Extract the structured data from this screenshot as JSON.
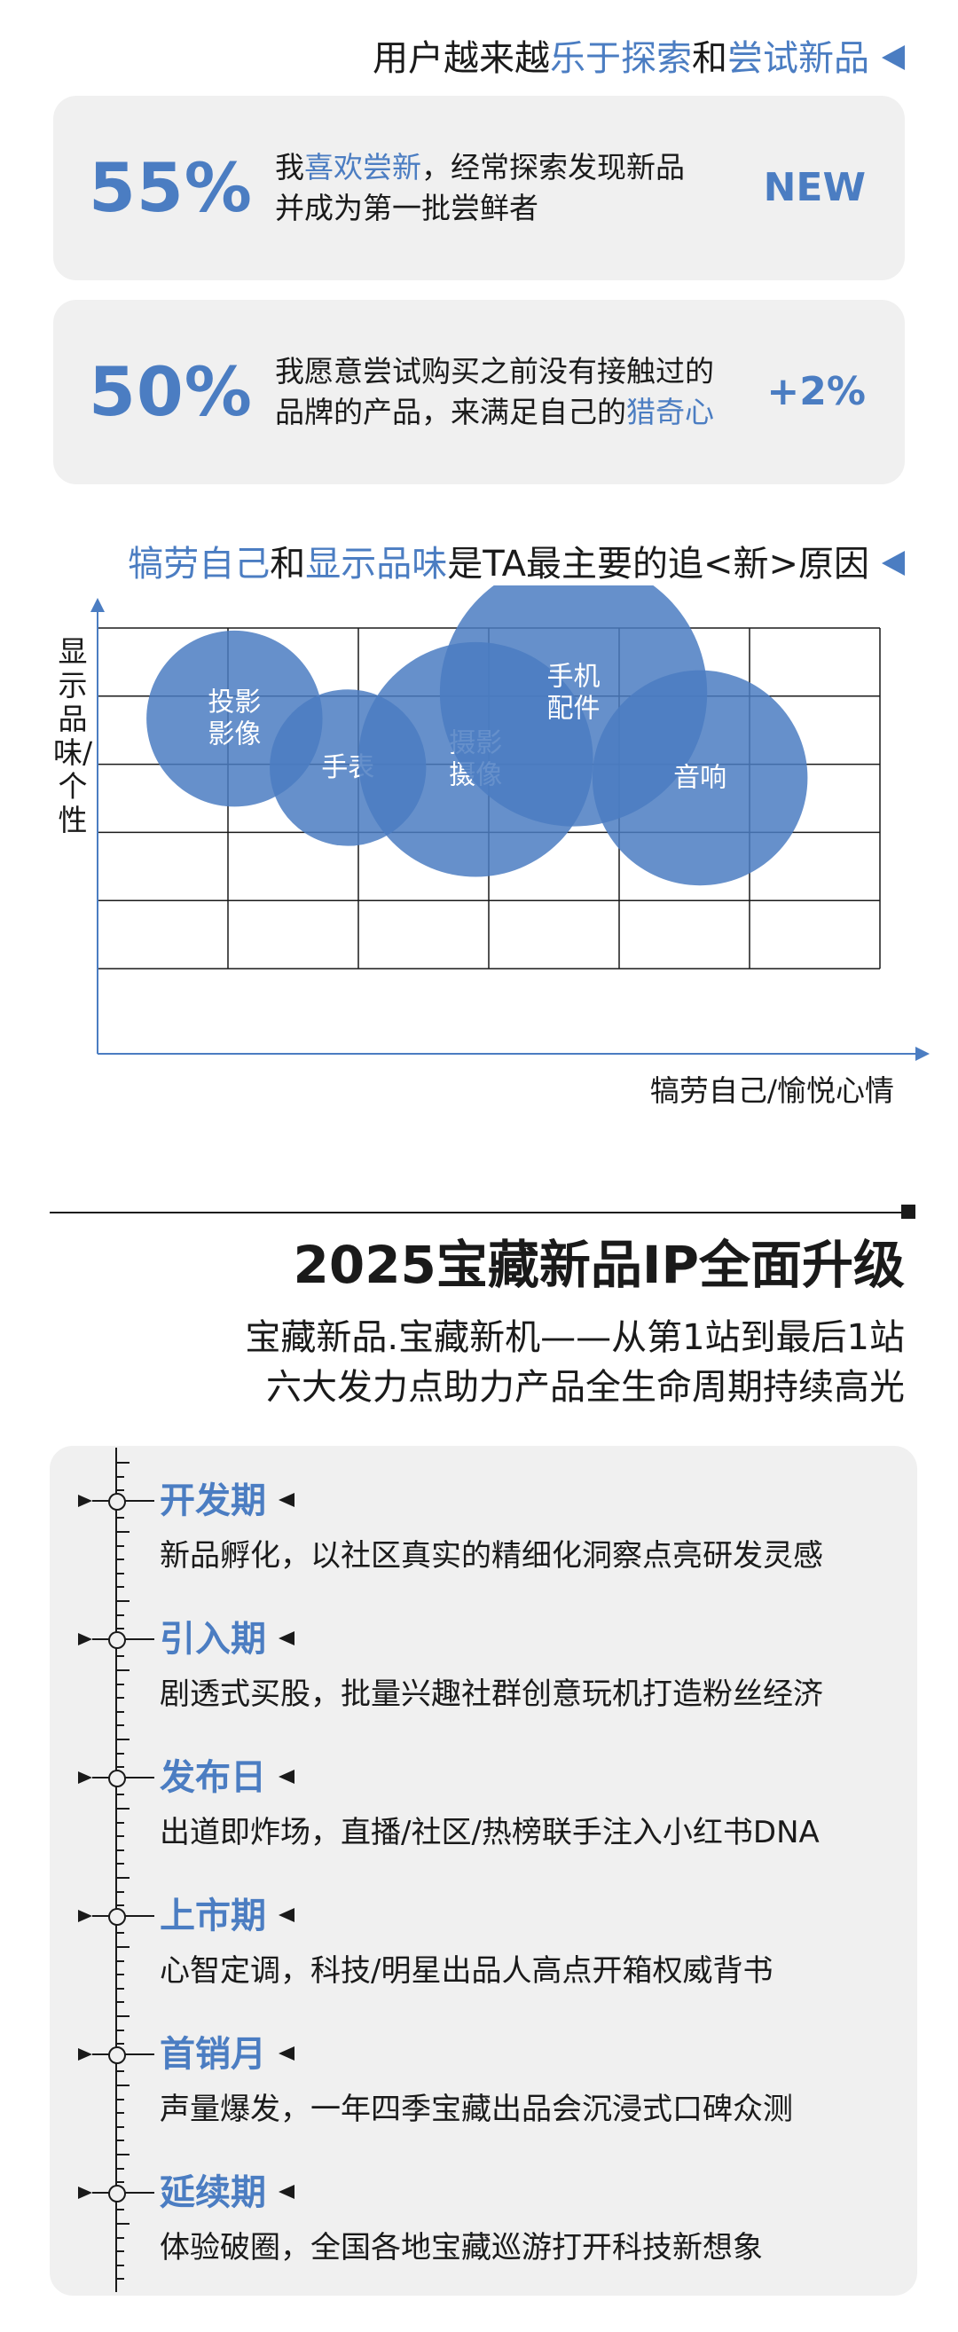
{
  "section1": {
    "title_parts": [
      "用户越来越",
      "乐于探索",
      "和",
      "尝试新品"
    ],
    "cards": [
      {
        "percent": "55%",
        "line1_parts": [
          "我",
          "喜欢尝新",
          "，经常探索发现新品"
        ],
        "line2_parts": [
          "并成为第一批尝鲜者",
          "",
          ""
        ],
        "badge": "NEW"
      },
      {
        "percent": "50%",
        "line1_parts": [
          "我愿意尝试购买之前没有接触过的",
          "",
          ""
        ],
        "line2_parts": [
          "品牌的产品，来满足自己的",
          "猎奇心",
          ""
        ],
        "badge": "+2%"
      }
    ]
  },
  "section2": {
    "title_parts": [
      "犒劳自己",
      "和",
      "显示品味",
      "是TA最主要的追<新>原因"
    ]
  },
  "chart_data": {
    "type": "scatter",
    "ylabel": "显示品味/个性",
    "xlabel": "犒劳自己/愉悦心情",
    "grid": true,
    "bubbles": [
      {
        "label_lines": [
          "投影",
          "影像"
        ],
        "x": 1.05,
        "y": 3.67,
        "size": 1.35
      },
      {
        "label_lines": [
          "手表"
        ],
        "x": 1.92,
        "y": 2.95,
        "size": 1.2
      },
      {
        "label_lines": [
          "摄影",
          "摄像"
        ],
        "x": 2.9,
        "y": 3.07,
        "size": 1.8
      },
      {
        "label_lines": [
          "手机",
          "配件"
        ],
        "x": 3.65,
        "y": 4.05,
        "size": 2.05
      },
      {
        "label_lines": [
          "音响"
        ],
        "x": 4.62,
        "y": 2.8,
        "size": 1.65
      }
    ],
    "colors": {
      "bubble": "#4b7dc2",
      "bubble_text": "#ffffff",
      "grid": "#1a1a1a",
      "axis": "#4b7dc2"
    }
  },
  "section3": {
    "title": "2025宝藏新品IP全面升级",
    "subtitle_line1": "宝藏新品.宝藏新机——从第1站到最后1站",
    "subtitle_line2": "六大发力点助力产品全生命周期持续高光",
    "stages": [
      {
        "name": "开发期",
        "desc": "新品孵化，以社区真实的精细化洞察点亮研发灵感"
      },
      {
        "name": "引入期",
        "desc": "剧透式买股，批量兴趣社群创意玩机打造粉丝经济"
      },
      {
        "name": "发布日",
        "desc": "出道即炸场，直播/社区/热榜联手注入小红书DNA"
      },
      {
        "name": "上市期",
        "desc": "心智定调，科技/明星出品人高点开箱权威背书"
      },
      {
        "name": "首销月",
        "desc": "声量爆发，一年四季宝藏出品会沉浸式口碑众测"
      },
      {
        "name": "延续期",
        "desc": "体验破圈，全国各地宝藏巡游打开科技新想象"
      }
    ]
  },
  "colors": {
    "accent": "#4b7dc2",
    "card_bg": "#f0f0f0",
    "text": "#1a1a1a"
  }
}
